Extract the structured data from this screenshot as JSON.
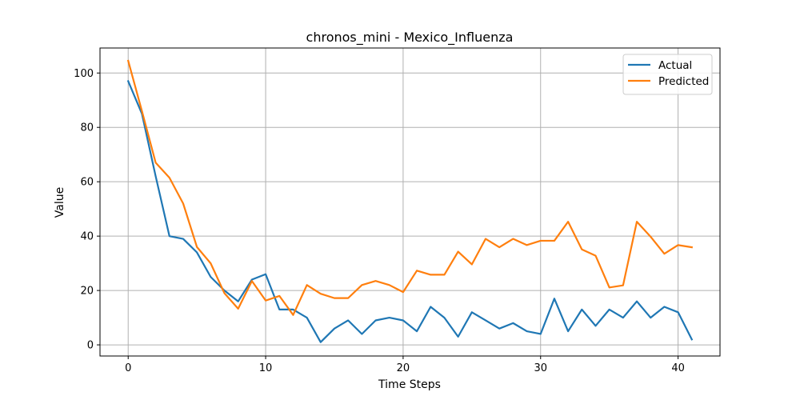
{
  "chart_data": {
    "type": "line",
    "title": "chronos_mini - Mexico_Influenza",
    "xlabel": "Time Steps",
    "ylabel": "Value",
    "xlim": [
      -2.05,
      43.05
    ],
    "ylim": [
      -4.1,
      109.2
    ],
    "xticks": [
      0,
      10,
      20,
      30,
      40
    ],
    "yticks": [
      0,
      20,
      40,
      60,
      80,
      100
    ],
    "grid": true,
    "legend": "top-right",
    "x": [
      0,
      1,
      2,
      3,
      4,
      5,
      6,
      7,
      8,
      9,
      10,
      11,
      12,
      13,
      14,
      15,
      16,
      17,
      18,
      19,
      20,
      21,
      22,
      23,
      24,
      25,
      26,
      27,
      28,
      29,
      30,
      31,
      32,
      33,
      34,
      35,
      36,
      37,
      38,
      39,
      40,
      41
    ],
    "series": [
      {
        "name": "Actual",
        "color": "#1f77b4",
        "values": [
          97,
          85,
          62,
          40,
          39,
          34,
          25,
          20,
          16,
          24,
          26,
          13,
          13,
          10,
          1,
          6,
          9,
          4,
          9,
          10,
          9,
          5,
          14,
          10,
          3,
          12,
          9,
          6,
          8,
          5,
          4,
          17,
          5,
          13,
          7,
          13,
          10,
          16,
          10,
          14,
          12,
          2
        ]
      },
      {
        "name": "Predicted",
        "color": "#ff7f0e",
        "values": [
          104.5,
          86,
          67,
          61.5,
          52,
          36,
          30,
          19,
          13.3,
          23.5,
          16.3,
          18,
          11,
          22,
          18.8,
          17.2,
          17.2,
          22,
          23.5,
          22,
          19.4,
          27.3,
          25.8,
          25.8,
          34.3,
          29.6,
          39,
          35.9,
          39,
          36.7,
          38.3,
          38.3,
          45.3,
          35.1,
          32.8,
          21.1,
          21.9,
          45.3,
          39.8,
          33.5,
          36.7,
          35.9
        ]
      }
    ]
  }
}
